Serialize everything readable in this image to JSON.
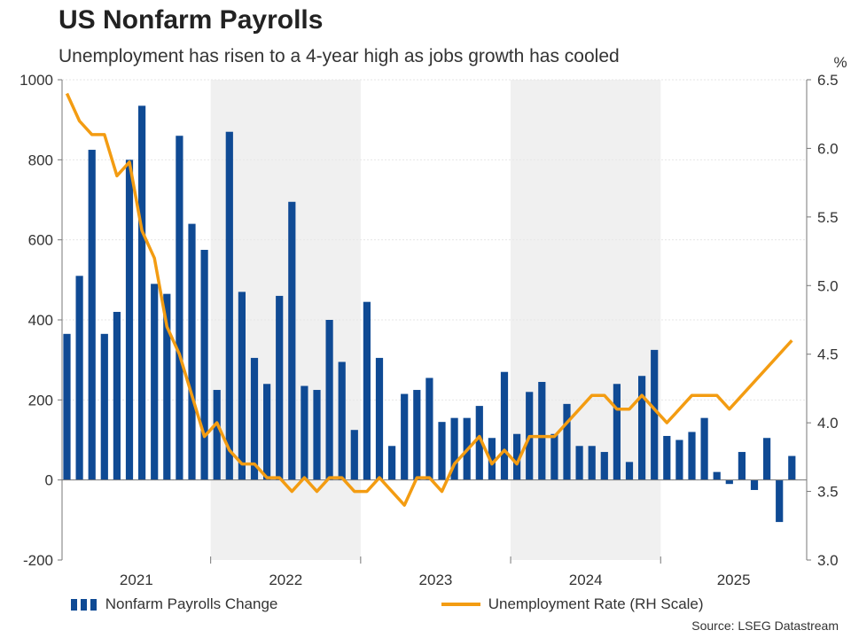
{
  "title": "US Nonfarm Payrolls",
  "subtitle": "Unemployment has risen to a 4-year high as jobs growth has cooled",
  "source": "Source: LSEG Datastream",
  "colors": {
    "bars": "#0f4a94",
    "line": "#f39c12",
    "shade": "#f0f0f0",
    "axis": "#777777",
    "grid": "#e6e6e6"
  },
  "legend": [
    {
      "label": "Nonfarm Payrolls Change",
      "marker": "bars"
    },
    {
      "label": "Unemployment Rate (RH Scale)",
      "marker": "line"
    }
  ],
  "chart_data": {
    "type": "bar+line",
    "y_left": {
      "range": [
        -200,
        1000
      ],
      "ticks": [
        -200,
        0,
        200,
        400,
        600,
        800,
        1000
      ]
    },
    "y_right": {
      "range": [
        3.0,
        6.5
      ],
      "ticks": [
        "3.0",
        "3.5",
        "4.0",
        "4.5",
        "5.0",
        "5.5",
        "6.0",
        "6.5"
      ],
      "unit_label": "%"
    },
    "x_labels": [
      "2021",
      "2022",
      "2023",
      "2024",
      "2025"
    ],
    "shaded_years": [
      "2022",
      "2024"
    ],
    "grid": true,
    "series": [
      {
        "name": "Nonfarm Payrolls Change",
        "type": "bar",
        "axis": "left",
        "values": [
          365,
          510,
          825,
          365,
          420,
          800,
          935,
          490,
          465,
          860,
          640,
          575,
          225,
          870,
          470,
          305,
          240,
          460,
          695,
          235,
          225,
          400,
          295,
          125,
          445,
          305,
          85,
          215,
          225,
          255,
          145,
          155,
          155,
          185,
          105,
          270,
          115,
          220,
          245,
          115,
          190,
          85,
          85,
          70,
          240,
          45,
          260,
          325,
          110,
          100,
          120,
          155,
          20,
          -10,
          70,
          -25,
          105,
          -105,
          60
        ]
      },
      {
        "name": "Unemployment Rate (RH Scale)",
        "type": "line",
        "axis": "right",
        "values": [
          6.4,
          6.2,
          6.1,
          6.1,
          5.8,
          5.9,
          5.4,
          5.2,
          4.7,
          4.5,
          4.2,
          3.9,
          4.0,
          3.8,
          3.7,
          3.7,
          3.6,
          3.6,
          3.5,
          3.6,
          3.5,
          3.6,
          3.6,
          3.5,
          3.5,
          3.6,
          3.5,
          3.4,
          3.6,
          3.6,
          3.5,
          3.7,
          3.8,
          3.9,
          3.7,
          3.8,
          3.7,
          3.9,
          3.9,
          3.9,
          4.0,
          4.1,
          4.2,
          4.2,
          4.1,
          4.1,
          4.2,
          4.1,
          4.0,
          4.1,
          4.2,
          4.2,
          4.2,
          4.1,
          4.2,
          4.3,
          4.4,
          4.5,
          4.6
        ]
      }
    ]
  }
}
